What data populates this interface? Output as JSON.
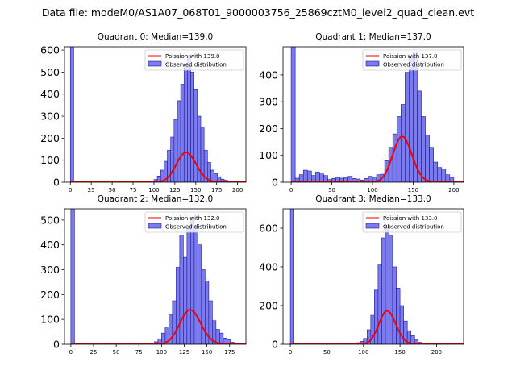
{
  "figure": {
    "suptitle": "Data file: modeM0/AS1A07_068T01_9000003756_25869cztM0_level2_quad_clean.evt"
  },
  "colors": {
    "bar_fill": "#7b7bee",
    "bar_edge": "#1a1a99",
    "poisson_line": "#ee0000"
  },
  "chart_data": [
    {
      "type": "bar",
      "title": "Quadrant 0: Median=139.0",
      "median": 139.0,
      "bin_width": 4,
      "xlim": [
        -7,
        210
      ],
      "ylim": [
        0,
        615
      ],
      "xticks": [
        0,
        25,
        50,
        75,
        100,
        125,
        150,
        175,
        200
      ],
      "yticks": [
        0,
        100,
        200,
        300,
        400,
        500,
        600
      ],
      "legend": {
        "placement": "top-right",
        "entries": [
          "Poission with 139.0",
          "Observed distribution"
        ]
      },
      "bins_x": [
        0,
        88,
        92,
        96,
        100,
        104,
        108,
        112,
        116,
        120,
        124,
        128,
        132,
        136,
        140,
        144,
        148,
        152,
        156,
        160,
        164,
        168,
        172,
        176,
        180,
        184,
        188,
        192,
        196,
        200
      ],
      "bins_y": [
        620,
        2,
        3,
        6,
        12,
        28,
        55,
        95,
        145,
        205,
        285,
        370,
        445,
        525,
        570,
        500,
        420,
        300,
        250,
        145,
        90,
        55,
        40,
        25,
        14,
        9,
        6,
        3,
        2,
        1
      ],
      "poisson_curve": {
        "lambda": 139.0,
        "scale": 4
      }
    },
    {
      "type": "bar",
      "title": "Quadrant 1: Median=137.0",
      "median": 137.0,
      "bin_width": 5,
      "xlim": [
        -10,
        212
      ],
      "ylim": [
        0,
        505
      ],
      "xticks": [
        0,
        50,
        100,
        150,
        200
      ],
      "yticks": [
        0,
        100,
        200,
        300,
        400
      ],
      "legend": {
        "placement": "top-right",
        "entries": [
          "Poission with 137.0",
          "Observed distribution"
        ]
      },
      "bins_x": [
        0,
        5,
        10,
        15,
        20,
        25,
        30,
        35,
        40,
        45,
        50,
        55,
        60,
        65,
        70,
        75,
        80,
        85,
        90,
        95,
        100,
        105,
        110,
        115,
        120,
        125,
        130,
        135,
        140,
        145,
        150,
        155,
        160,
        165,
        170,
        175,
        180,
        185,
        190,
        195,
        200
      ],
      "bins_y": [
        510,
        15,
        28,
        45,
        42,
        25,
        38,
        35,
        25,
        10,
        14,
        18,
        15,
        18,
        22,
        14,
        12,
        8,
        14,
        22,
        16,
        28,
        30,
        80,
        130,
        180,
        245,
        290,
        410,
        470,
        485,
        340,
        245,
        175,
        130,
        75,
        55,
        50,
        28,
        18,
        5
      ],
      "poisson_curve": {
        "lambda": 137.0,
        "scale": 5
      }
    },
    {
      "type": "bar",
      "title": "Quadrant 2: Median=132.0",
      "median": 132.0,
      "bin_width": 4,
      "xlim": [
        -7,
        193
      ],
      "ylim": [
        0,
        545
      ],
      "xticks": [
        0,
        25,
        50,
        75,
        100,
        125,
        150,
        175
      ],
      "yticks": [
        0,
        100,
        200,
        300,
        400,
        500
      ],
      "legend": {
        "placement": "top-right",
        "entries": [
          "Poission with 132.0",
          "Observed distribution"
        ]
      },
      "bins_x": [
        0,
        88,
        92,
        96,
        100,
        104,
        108,
        112,
        116,
        120,
        124,
        128,
        132,
        136,
        140,
        144,
        148,
        152,
        156,
        160,
        164,
        168,
        172,
        176,
        180
      ],
      "bins_y": [
        550,
        4,
        10,
        22,
        45,
        70,
        120,
        175,
        310,
        440,
        350,
        470,
        510,
        480,
        400,
        300,
        255,
        175,
        95,
        60,
        45,
        25,
        18,
        8,
        4
      ],
      "poisson_curve": {
        "lambda": 132.0,
        "scale": 4
      }
    },
    {
      "type": "bar",
      "title": "Quadrant 3: Median=133.0",
      "median": 133.0,
      "bin_width": 5,
      "xlim": [
        -10,
        237
      ],
      "ylim": [
        0,
        700
      ],
      "xticks": [
        0,
        50,
        100,
        150,
        200
      ],
      "yticks": [
        0,
        200,
        400,
        600
      ],
      "legend": {
        "placement": "top-right",
        "entries": [
          "Poission with 133.0",
          "Observed distribution"
        ]
      },
      "bins_x": [
        0,
        85,
        90,
        95,
        100,
        105,
        110,
        115,
        120,
        125,
        130,
        135,
        140,
        145,
        150,
        155,
        160,
        165,
        170,
        175,
        180
      ],
      "bins_y": [
        700,
        3,
        8,
        15,
        30,
        75,
        150,
        280,
        410,
        550,
        610,
        560,
        400,
        290,
        200,
        120,
        70,
        45,
        25,
        10,
        4
      ],
      "poisson_curve": {
        "lambda": 133.0,
        "scale": 5
      }
    }
  ]
}
